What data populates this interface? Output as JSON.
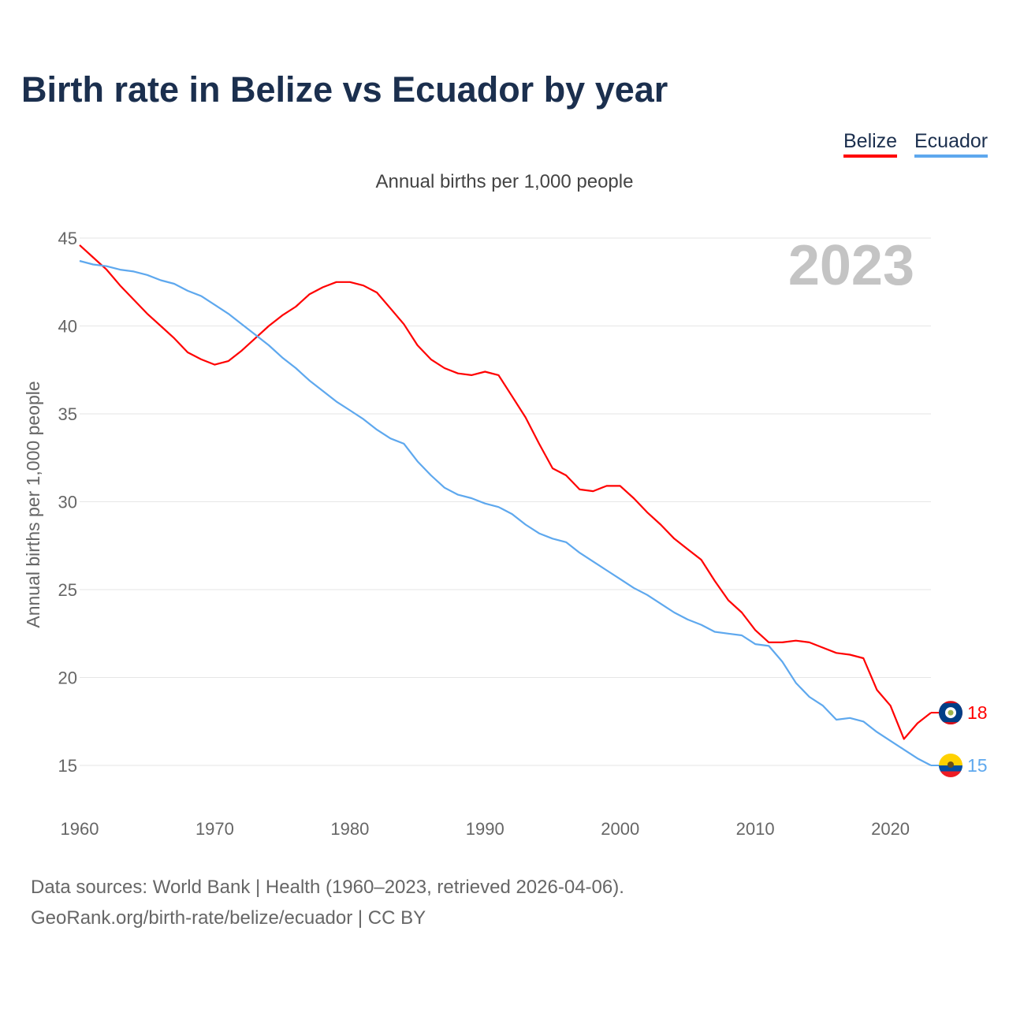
{
  "title": "Birth rate in Belize vs Ecuador by year",
  "subtitle": "Annual births per 1,000 people",
  "source_line1": "Data sources: World Bank | Health (1960–2023, retrieved 2026-04-06).",
  "source_line2": "GeoRank.org/birth-rate/belize/ecuador | CC BY",
  "chart_data": {
    "type": "line",
    "title": "Birth rate in Belize vs Ecuador by year",
    "xlabel": "",
    "ylabel": "Annual births per 1,000 people",
    "year_label": "2023",
    "xlim": [
      1960,
      2023
    ],
    "ylim": [
      15,
      45
    ],
    "x_ticks": [
      1960,
      1970,
      1980,
      1990,
      2000,
      2010,
      2020
    ],
    "y_ticks": [
      15,
      20,
      25,
      30,
      35,
      40,
      45
    ],
    "grid": true,
    "legend_position": "top-right",
    "x": [
      1960,
      1961,
      1962,
      1963,
      1964,
      1965,
      1966,
      1967,
      1968,
      1969,
      1970,
      1971,
      1972,
      1973,
      1974,
      1975,
      1976,
      1977,
      1978,
      1979,
      1980,
      1981,
      1982,
      1983,
      1984,
      1985,
      1986,
      1987,
      1988,
      1989,
      1990,
      1991,
      1992,
      1993,
      1994,
      1995,
      1996,
      1997,
      1998,
      1999,
      2000,
      2001,
      2002,
      2003,
      2004,
      2005,
      2006,
      2007,
      2008,
      2009,
      2010,
      2011,
      2012,
      2013,
      2014,
      2015,
      2016,
      2017,
      2018,
      2019,
      2020,
      2021,
      2022,
      2023
    ],
    "series": [
      {
        "name": "Belize",
        "color": "#ff0000",
        "end_label": "18",
        "values": [
          44.6,
          43.9,
          43.2,
          42.3,
          41.5,
          40.7,
          40.0,
          39.3,
          38.5,
          38.1,
          37.8,
          38.0,
          38.6,
          39.3,
          40.0,
          40.6,
          41.1,
          41.8,
          42.2,
          42.5,
          42.5,
          42.3,
          41.9,
          41.0,
          40.1,
          38.9,
          38.1,
          37.6,
          37.3,
          37.2,
          37.4,
          37.2,
          36.0,
          34.8,
          33.3,
          31.9,
          31.5,
          30.7,
          30.6,
          30.9,
          30.9,
          30.2,
          29.4,
          28.7,
          27.9,
          27.3,
          26.7,
          25.5,
          24.4,
          23.7,
          22.7,
          22.0,
          22.0,
          22.1,
          22.0,
          21.7,
          21.4,
          21.3,
          21.1,
          19.3,
          18.4,
          16.5,
          17.4,
          18.0
        ]
      },
      {
        "name": "Ecuador",
        "color": "#5ea8ee",
        "end_label": "15",
        "values": [
          43.7,
          43.5,
          43.4,
          43.2,
          43.1,
          42.9,
          42.6,
          42.4,
          42.0,
          41.7,
          41.2,
          40.7,
          40.1,
          39.5,
          38.9,
          38.2,
          37.6,
          36.9,
          36.3,
          35.7,
          35.2,
          34.7,
          34.1,
          33.6,
          33.3,
          32.3,
          31.5,
          30.8,
          30.4,
          30.2,
          29.9,
          29.7,
          29.3,
          28.7,
          28.2,
          27.9,
          27.7,
          27.1,
          26.6,
          26.1,
          25.6,
          25.1,
          24.7,
          24.2,
          23.7,
          23.3,
          23.0,
          22.6,
          22.5,
          22.4,
          21.9,
          21.8,
          20.9,
          19.7,
          18.9,
          18.4,
          17.6,
          17.7,
          17.5,
          16.9,
          16.4,
          15.9,
          15.4,
          15.0
        ]
      }
    ]
  }
}
